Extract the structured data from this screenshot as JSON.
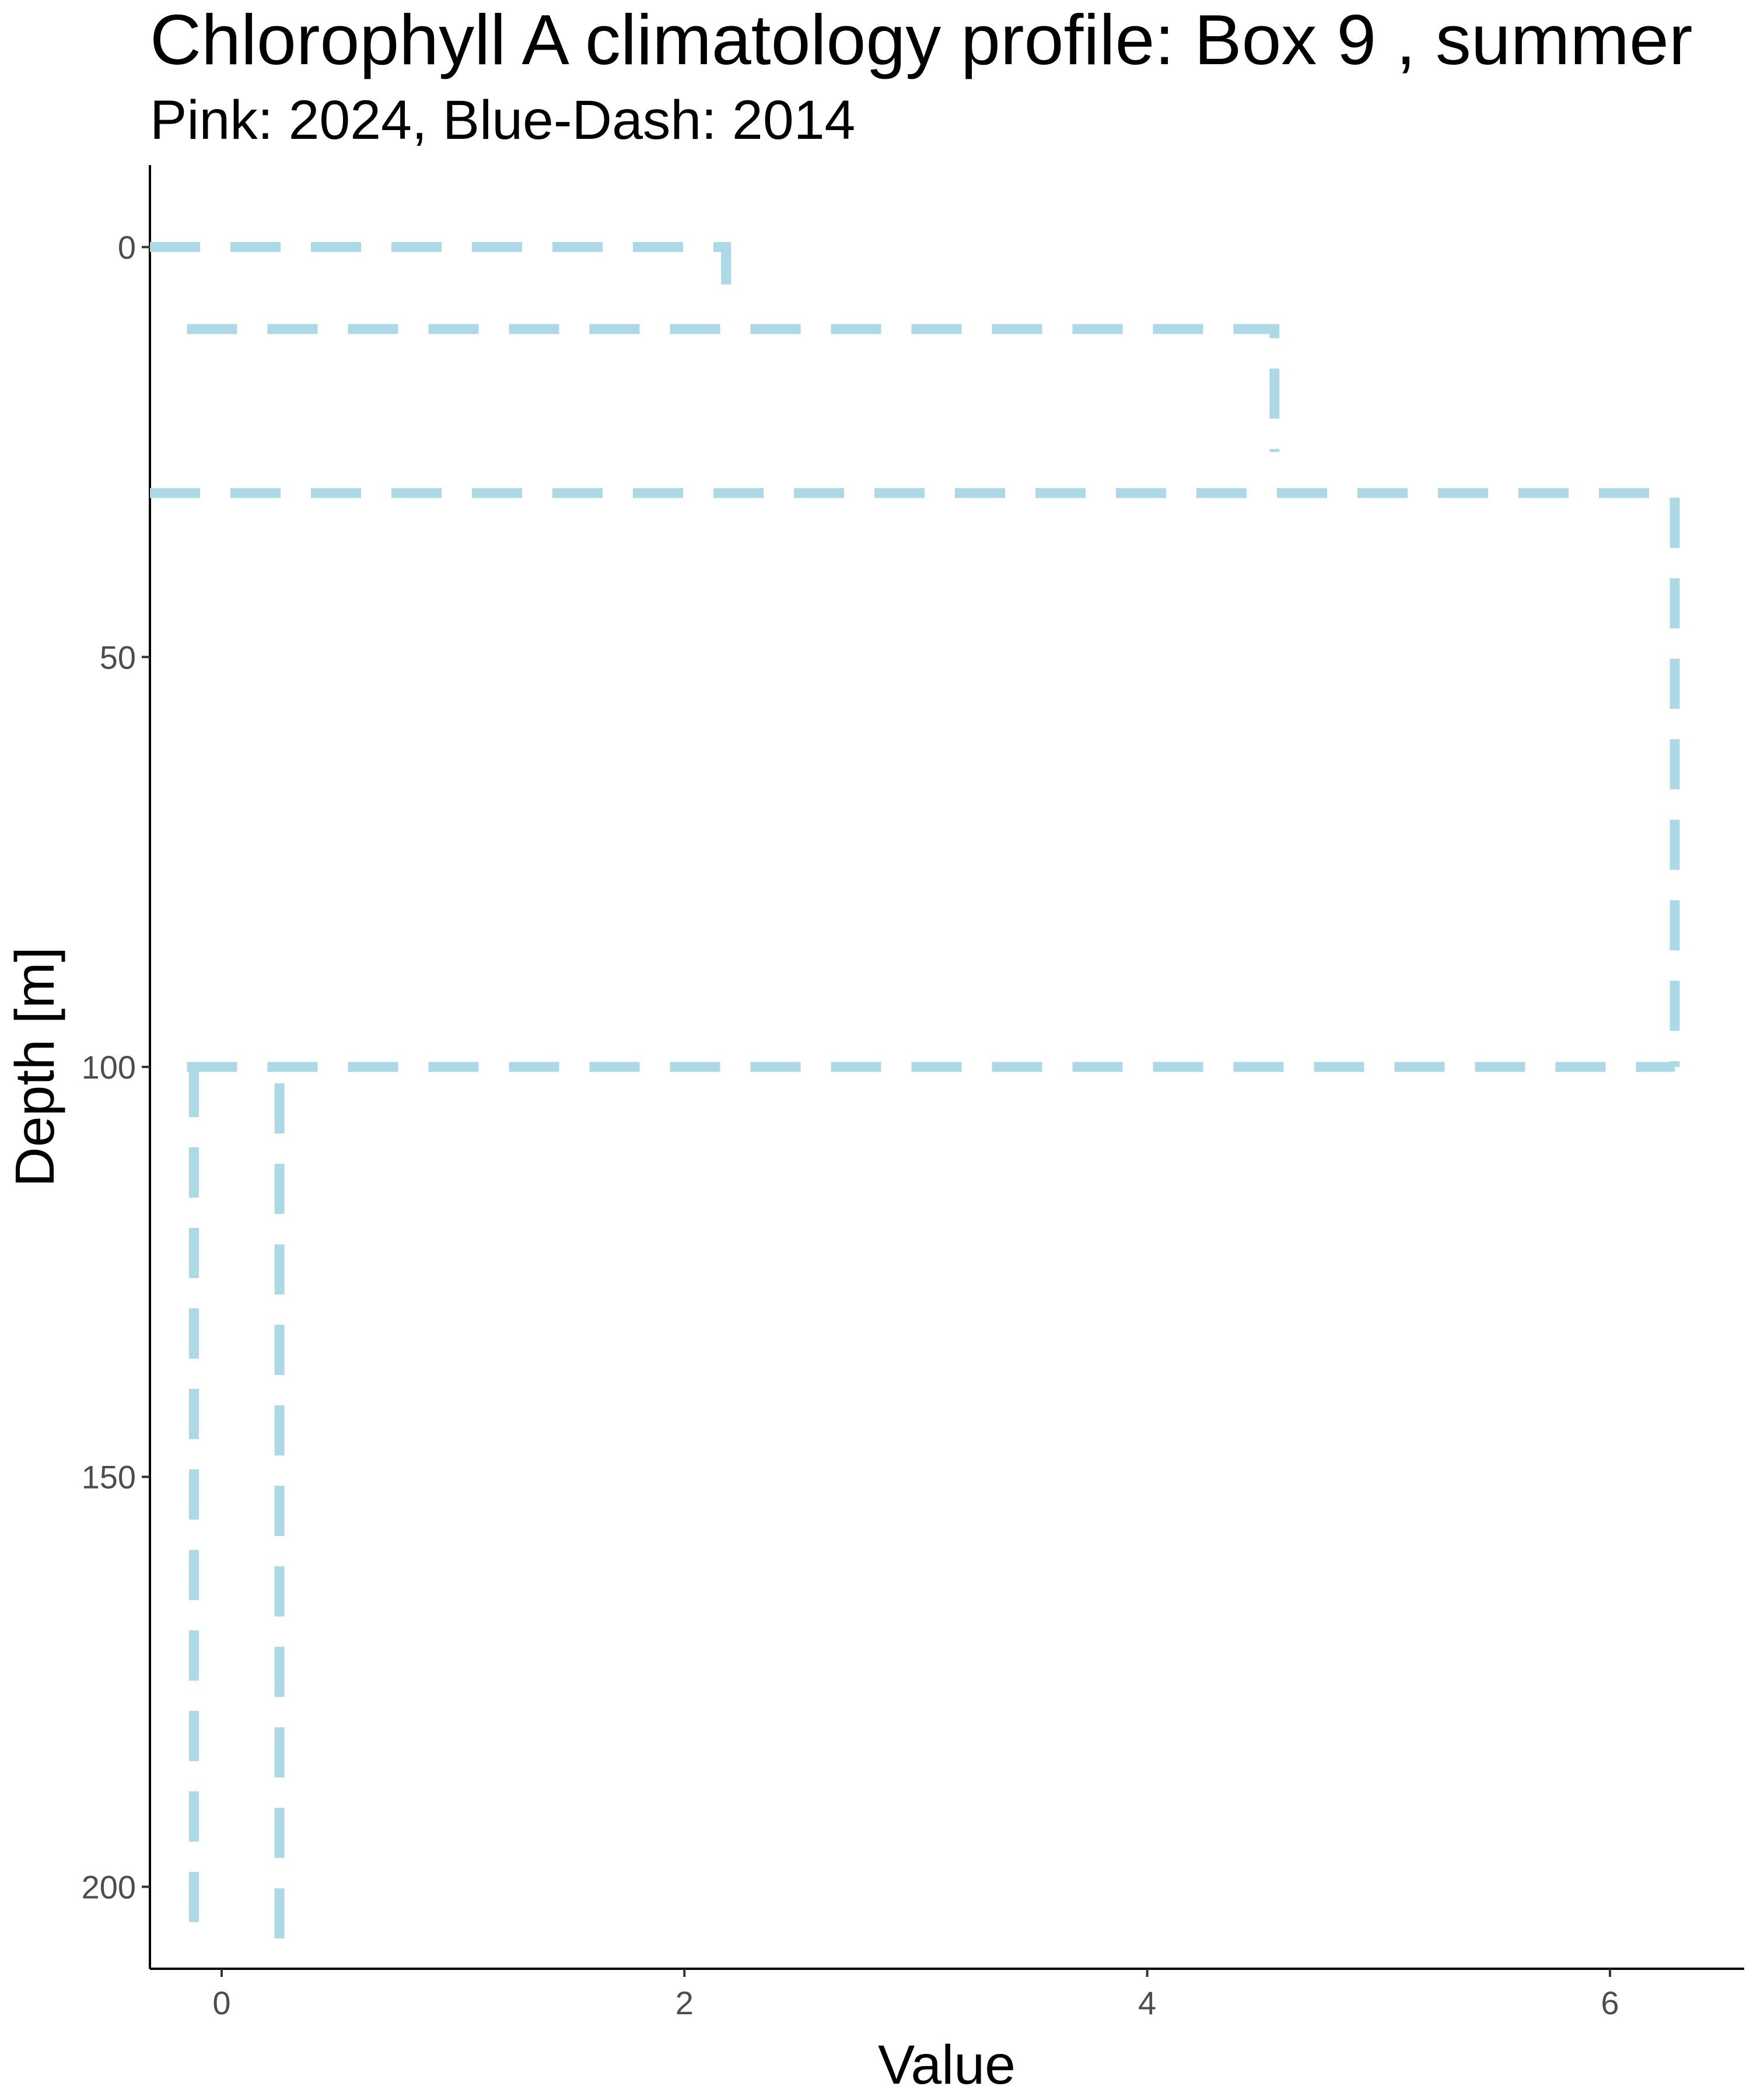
{
  "chart_data": {
    "type": "line",
    "title": "Chlorophyll A climatology profile: Box 9 , summer",
    "subtitle": "Pink: 2024, Blue-Dash: 2014",
    "xlabel": "Value",
    "ylabel": "Depth [m]",
    "xlim": [
      -0.31,
      6.58
    ],
    "ylim": [
      -10,
      210
    ],
    "y_reversed": true,
    "x_ticks": [
      0,
      2,
      4,
      6
    ],
    "y_ticks": [
      0,
      50,
      100,
      150,
      200
    ],
    "grid": false,
    "legend": "none",
    "series": [
      {
        "color": "#ADD8E6",
        "dash": "dashed",
        "segments": [
          [
            [
              -0.31,
              0
            ],
            [
              2.18,
              0
            ],
            [
              2.18,
              5
            ]
          ],
          [
            [
              -0.15,
              10
            ],
            [
              4.55,
              10
            ],
            [
              4.55,
              25
            ]
          ],
          [
            [
              -0.31,
              30
            ],
            [
              6.28,
              30
            ],
            [
              6.28,
              100
            ]
          ],
          [
            [
              -0.15,
              100
            ],
            [
              6.28,
              100
            ]
          ],
          [
            [
              -0.12,
              100
            ],
            [
              -0.12,
              205
            ]
          ],
          [
            [
              0.25,
              102
            ],
            [
              0.25,
              208
            ]
          ]
        ]
      }
    ]
  }
}
